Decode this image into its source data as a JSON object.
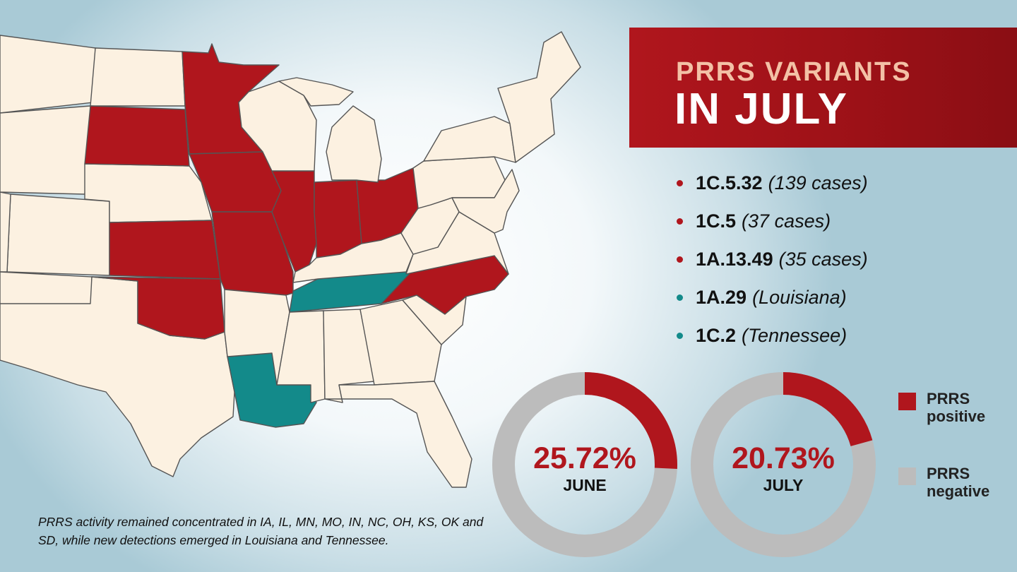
{
  "title": {
    "line1": "PRRS VARIANTS",
    "line2": "IN JULY"
  },
  "colors": {
    "positive": "#b0161d",
    "new_detection": "#138a8a",
    "negative": "#bcbcbc",
    "neutral_state": "#fcf1e1"
  },
  "variants": [
    {
      "code": "1C.5.32",
      "note": "(139 cases)",
      "color": "#b0161d"
    },
    {
      "code": "1C.5",
      "note": "(37 cases)",
      "color": "#b0161d"
    },
    {
      "code": "1A.13.49",
      "note": "(35 cases)",
      "color": "#b0161d"
    },
    {
      "code": "1A.29",
      "note": "(Louisiana)",
      "color": "#138a8a"
    },
    {
      "code": "1C.2",
      "note": "(Tennessee)",
      "color": "#138a8a"
    }
  ],
  "donuts": [
    {
      "percent_label": "25.72%",
      "percent_value": 25.72,
      "month": "JUNE"
    },
    {
      "percent_label": "20.73%",
      "percent_value": 20.73,
      "month": "JULY"
    }
  ],
  "legend": [
    {
      "label_line1": "PRRS",
      "label_line2": "positive",
      "color": "#b0161d"
    },
    {
      "label_line1": "PRRS",
      "label_line2": "negative",
      "color": "#bcbcbc"
    }
  ],
  "map": {
    "positive_states": [
      "MN",
      "SD",
      "IA",
      "IL",
      "MO",
      "IN",
      "OH",
      "KS",
      "OK",
      "NC"
    ],
    "new_detection_states": [
      "LA",
      "TN"
    ]
  },
  "caption": "PRRS activity remained concentrated in IA, IL, MN, MO, IN, NC, OH, KS, OK and SD, while new detections emerged in Louisiana and Tennessee."
}
